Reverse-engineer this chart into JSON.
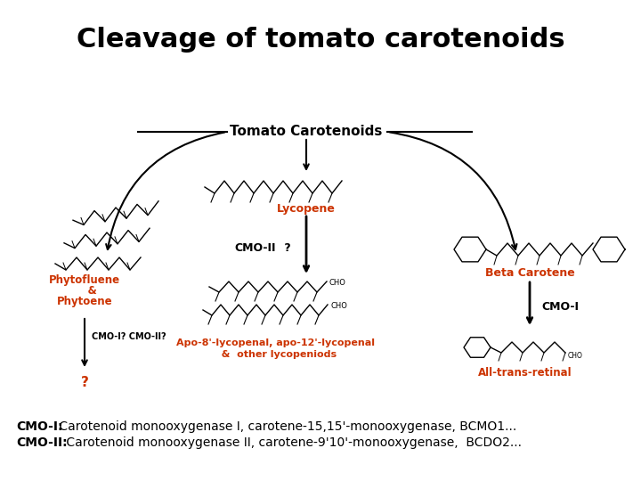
{
  "title": "Cleavage of tomato carotenoids",
  "title_fontsize": 22,
  "title_color": "#000000",
  "title_fontweight": "bold",
  "bg_color": "#ffffff",
  "footer_lines": [
    {
      "bold": "CMO-I:",
      "normal": " Carotenoid monooxygenase I, carotene-15,15'-monooxygenase, BCMO1..."
    },
    {
      "bold": "CMO-II:",
      "normal": " Carotenoid monooxygenase II, carotene-9'10'-monooxygenase,  BCDO2..."
    }
  ],
  "footer_fontsize": 10,
  "orange": "#cc3300",
  "black": "#000000"
}
